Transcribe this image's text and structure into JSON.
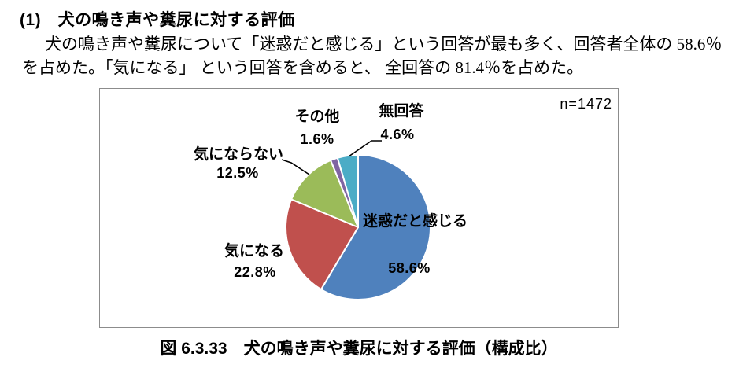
{
  "page": {
    "heading": "(1)　犬の鳴き声や糞尿に対する評価",
    "body_lines": [
      "犬の鳴き声や糞尿について「迷惑だと感じる」という回答が最も多く、回答者全体の 58.6％",
      "を占めた。「気になる」 という回答を含めると、 全回答の 81.4％を占めた。"
    ],
    "caption": "図 6.3.33　犬の鳴き声や糞尿に対する評価（構成比）"
  },
  "chart": {
    "sample_label": "n=1472"
  },
  "chart_data": {
    "type": "pie",
    "title": "犬の鳴き声や糞尿に対する評価（構成比）",
    "n": 1472,
    "start_angle_deg": 0,
    "direction": "clockwise",
    "slice_border_color": "#ffffff",
    "slices": [
      {
        "label": "迷惑だと感じる",
        "value": 58.6,
        "pct_label": "58.6%",
        "color": "#4F81BD",
        "label_position": "inside"
      },
      {
        "label": "気になる",
        "value": 22.8,
        "pct_label": "22.8%",
        "color": "#C0504D",
        "label_position": "outside"
      },
      {
        "label": "気にならない",
        "value": 12.5,
        "pct_label": "12.5%",
        "color": "#9BBB59",
        "label_position": "outside"
      },
      {
        "label": "その他",
        "value": 1.6,
        "pct_label": "1.6%",
        "color": "#8064A2",
        "label_position": "outside"
      },
      {
        "label": "無回答",
        "value": 4.6,
        "pct_label": "4.6%",
        "color": "#4BACC6",
        "label_position": "outside"
      }
    ]
  }
}
